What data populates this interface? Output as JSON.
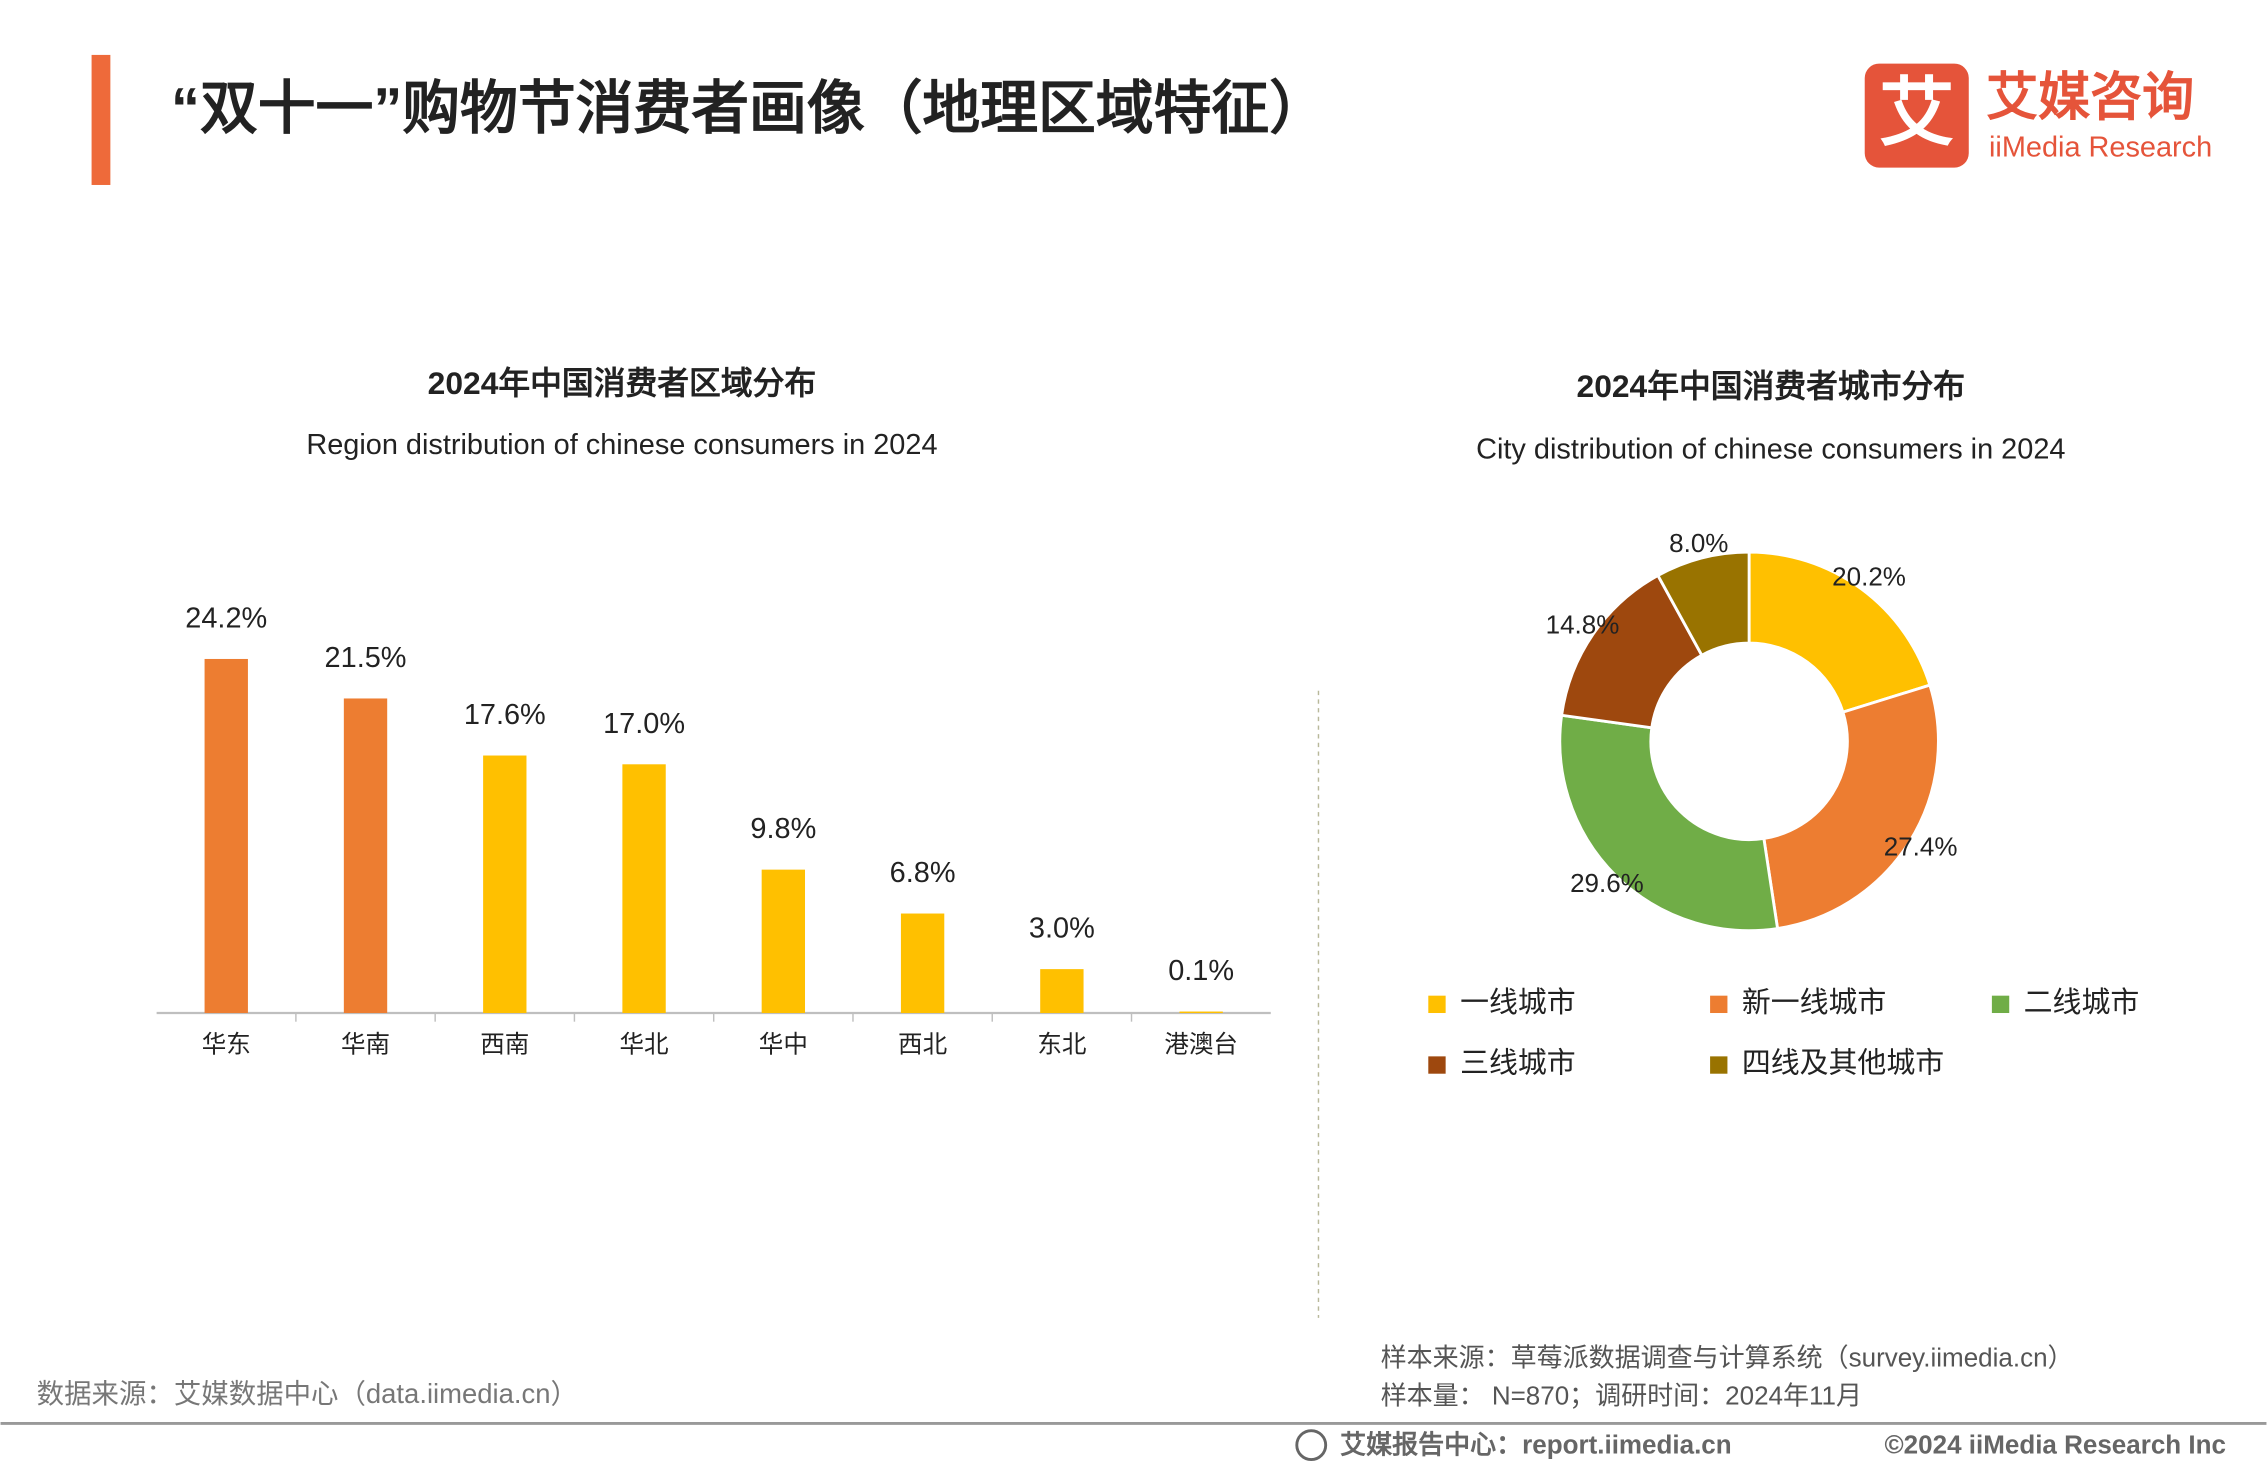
{
  "header": {
    "title": "“双十一”购物节消费者画像（地理区域特征）",
    "logo_mark": "艾",
    "logo_cn": "艾媒咨询",
    "logo_en": "iiMedia Research"
  },
  "chart_data": [
    {
      "type": "bar",
      "title": "2024年中国消费者区域分布",
      "subtitle": "Region distribution of chinese consumers in 2024",
      "categories": [
        "华东",
        "华南",
        "西南",
        "华北",
        "华中",
        "西北",
        "东北",
        "港澳台"
      ],
      "values": [
        24.2,
        21.5,
        17.6,
        17.0,
        9.8,
        6.8,
        3.0,
        0.1
      ],
      "value_labels": [
        "24.2%",
        "21.5%",
        "17.6%",
        "17.0%",
        "9.8%",
        "6.8%",
        "3.0%",
        "0.1%"
      ],
      "colors": [
        "#ED7D31",
        "#ED7D31",
        "#FFC000",
        "#FFC000",
        "#FFC000",
        "#FFC000",
        "#FFC000",
        "#FFC000"
      ]
    },
    {
      "type": "donut",
      "title": "2024年中国消费者城市分布",
      "subtitle": "City distribution of chinese consumers in 2024",
      "categories": [
        "一线城市",
        "新一线城市",
        "二线城市",
        "三线城市",
        "四线及其他城市"
      ],
      "values": [
        20.2,
        27.4,
        29.6,
        14.8,
        8.0
      ],
      "value_labels": [
        "20.2%",
        "27.4%",
        "29.6%",
        "14.8%",
        "8.0%"
      ],
      "colors": [
        "#FFC000",
        "#ED7D31",
        "#70AD47",
        "#9E480E",
        "#997300"
      ]
    }
  ],
  "footer": {
    "data_source": "数据来源：艾媒数据中心（data.iimedia.cn）",
    "sample_source": "样本来源：草莓派数据调查与计算系统（survey.iimedia.cn）",
    "sample_size": "样本量： N=870；调研时间：2024年11月",
    "report_center": "艾媒报告中心：report.iimedia.cn",
    "copyright": "©2024  iiMedia Research  Inc"
  }
}
